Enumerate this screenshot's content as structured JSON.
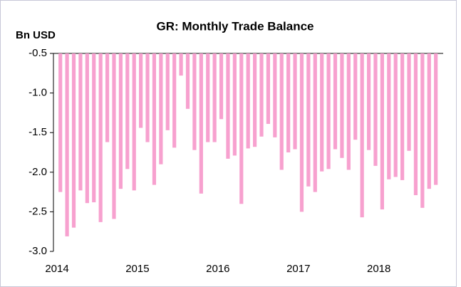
{
  "chart_data": {
    "type": "bar",
    "title": "GR: Monthly Trade Balance",
    "y_label": "Bn USD",
    "categories": [
      "2014",
      null,
      null,
      null,
      null,
      null,
      null,
      null,
      null,
      null,
      null,
      null,
      "2015",
      null,
      null,
      null,
      null,
      null,
      null,
      null,
      null,
      null,
      null,
      null,
      "2016",
      null,
      null,
      null,
      null,
      null,
      null,
      null,
      null,
      null,
      null,
      null,
      "2017",
      null,
      null,
      null,
      null,
      null,
      null,
      null,
      null,
      null,
      null,
      null,
      "2018",
      null,
      null,
      null,
      null,
      null,
      null,
      null,
      null
    ],
    "values": [
      -2.25,
      -2.81,
      -2.7,
      -2.23,
      -2.39,
      -2.38,
      -2.63,
      -1.62,
      -2.59,
      -2.21,
      -1.96,
      -2.23,
      -1.44,
      -1.62,
      -2.16,
      -1.9,
      -1.47,
      -1.69,
      -0.78,
      -1.2,
      -1.72,
      -2.27,
      -1.62,
      -1.62,
      -1.33,
      -1.83,
      -1.79,
      -2.4,
      -1.7,
      -1.68,
      -1.55,
      -1.39,
      -1.56,
      -1.97,
      -1.75,
      -1.71,
      -2.5,
      -2.18,
      -2.25,
      -1.99,
      -1.96,
      -1.71,
      -1.82,
      -1.97,
      -1.59,
      -2.57,
      -1.72,
      -1.92,
      -2.47,
      -2.09,
      -2.06,
      -2.1,
      -1.73,
      -2.29,
      -2.45,
      -2.21,
      -2.16
    ],
    "color": "#f7a1cf",
    "ylim": [
      -3.0,
      -0.5
    ],
    "yticks": [
      {
        "value": -3,
        "label": "-3.0"
      },
      -2.5,
      {
        "value": -2,
        "label": "-2.0"
      },
      -1.5,
      {
        "value": -1,
        "label": "-1.0"
      },
      -0.5
    ],
    "grid": false
  }
}
